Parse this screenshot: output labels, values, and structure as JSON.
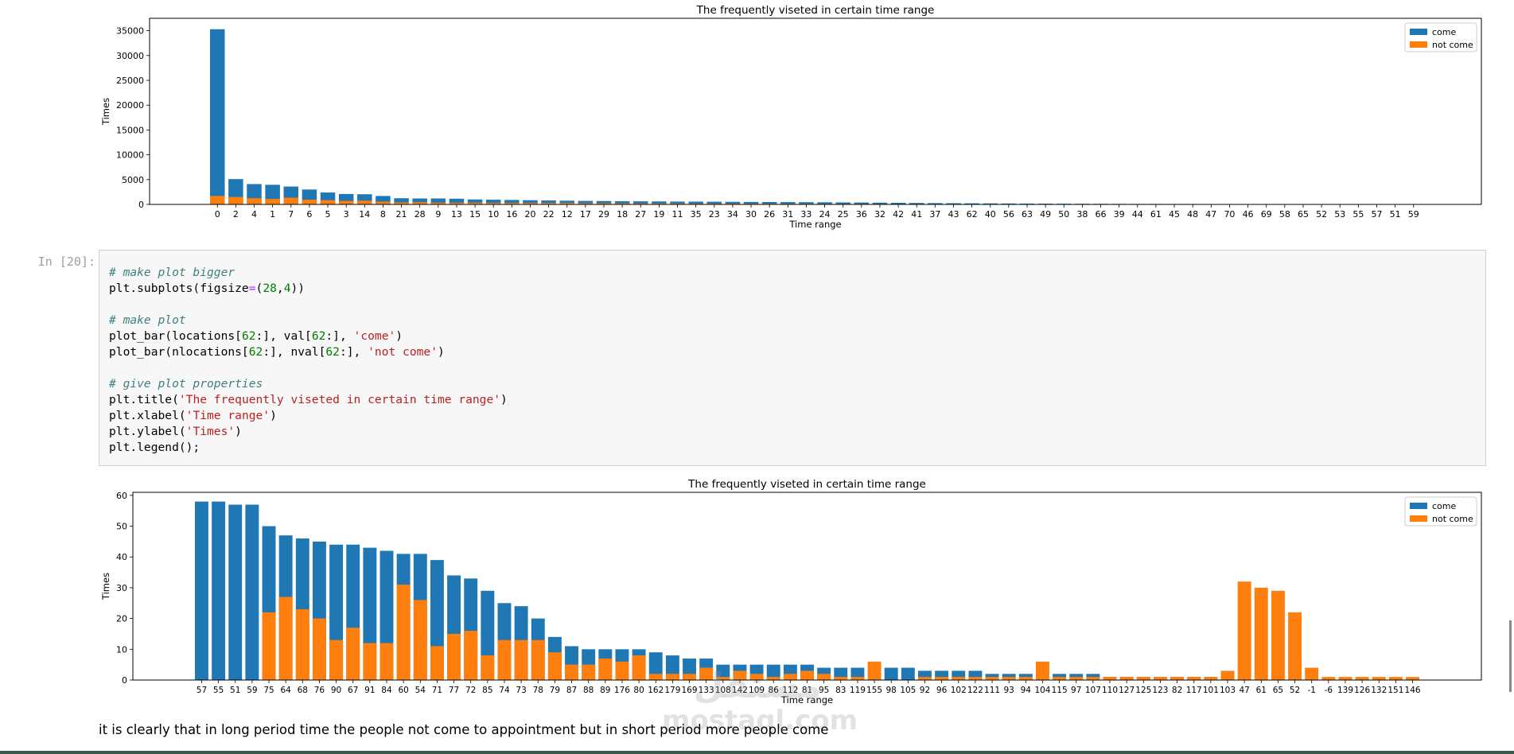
{
  "chart_data": [
    {
      "type": "bar",
      "title": "The frequently viseted in certain time range",
      "xlabel": "Time range",
      "ylabel": "Times",
      "ylim": [
        0,
        37500
      ],
      "yticks": [
        0,
        5000,
        10000,
        15000,
        20000,
        25000,
        30000,
        35000
      ],
      "categories": [
        "0",
        "2",
        "4",
        "1",
        "7",
        "6",
        "5",
        "3",
        "14",
        "8",
        "21",
        "28",
        "9",
        "13",
        "15",
        "10",
        "16",
        "20",
        "22",
        "12",
        "17",
        "29",
        "18",
        "27",
        "19",
        "11",
        "35",
        "23",
        "34",
        "30",
        "26",
        "31",
        "33",
        "24",
        "25",
        "36",
        "32",
        "42",
        "41",
        "37",
        "43",
        "62",
        "40",
        "56",
        "63",
        "49",
        "50",
        "38",
        "66",
        "39",
        "44",
        "61",
        "45",
        "48",
        "47",
        "70",
        "46",
        "69",
        "58",
        "65",
        "52",
        "53",
        "55",
        "57",
        "51",
        "59"
      ],
      "series": [
        {
          "name": "come",
          "color": "#1f77b4",
          "values": [
            35300,
            5100,
            4100,
            3950,
            3600,
            3000,
            2400,
            2100,
            2050,
            1700,
            1250,
            1200,
            1200,
            1150,
            1000,
            950,
            900,
            850,
            800,
            750,
            700,
            680,
            650,
            620,
            600,
            570,
            560,
            540,
            520,
            500,
            480,
            470,
            450,
            430,
            400,
            380,
            350,
            320,
            290,
            260,
            240,
            220,
            200,
            180,
            160,
            150,
            140,
            130,
            120,
            110,
            100,
            95,
            90,
            85,
            80,
            75,
            70,
            65,
            60,
            58,
            55,
            50,
            45,
            40,
            35,
            30
          ]
        },
        {
          "name": "not come",
          "color": "#ff7f0e",
          "values": [
            1700,
            1500,
            1250,
            1100,
            1350,
            950,
            850,
            700,
            750,
            550,
            400,
            450,
            350,
            350,
            350,
            300,
            300,
            300,
            300,
            300,
            250,
            250,
            220,
            200,
            200,
            200,
            170,
            170,
            160,
            150,
            150,
            140,
            130,
            120,
            110,
            100,
            90,
            80,
            70,
            60,
            50,
            50,
            40,
            40,
            35,
            30,
            25,
            25,
            20,
            20,
            15,
            15,
            12,
            10,
            10,
            8,
            6,
            5,
            5,
            4,
            3,
            2,
            2,
            1,
            1,
            1
          ]
        }
      ],
      "legend_position": "top-right",
      "grid": false
    },
    {
      "type": "bar",
      "title": "The frequently viseted in certain time range",
      "xlabel": "Time range",
      "ylabel": "Times",
      "ylim": [
        0,
        61
      ],
      "yticks": [
        0,
        10,
        20,
        30,
        40,
        50,
        60
      ],
      "categories": [
        "57",
        "55",
        "51",
        "59",
        "75",
        "64",
        "68",
        "76",
        "90",
        "67",
        "91",
        "84",
        "60",
        "54",
        "71",
        "77",
        "72",
        "85",
        "74",
        "73",
        "78",
        "79",
        "87",
        "88",
        "89",
        "176",
        "80",
        "162",
        "179",
        "169",
        "133",
        "108",
        "142",
        "109",
        "86",
        "112",
        "81",
        "95",
        "83",
        "119",
        "155",
        "98",
        "105",
        "92",
        "96",
        "102",
        "122",
        "111",
        "93",
        "94",
        "104",
        "115",
        "97",
        "107",
        "110",
        "127",
        "125",
        "123",
        "82",
        "117",
        "101",
        "103",
        "47",
        "61",
        "65",
        "52",
        "-1",
        "-6",
        "139",
        "126",
        "132",
        "151",
        "146"
      ],
      "series": [
        {
          "name": "come",
          "color": "#1f77b4",
          "values": [
            58,
            58,
            57,
            57,
            50,
            47,
            46,
            45,
            44,
            44,
            43,
            42,
            41,
            41,
            39,
            34,
            33,
            29,
            25,
            24,
            20,
            14,
            11,
            10,
            10,
            10,
            10,
            9,
            8,
            7,
            7,
            5,
            5,
            5,
            5,
            5,
            5,
            4,
            4,
            4,
            0,
            4,
            4,
            3,
            3,
            3,
            3,
            2,
            2,
            2,
            0,
            2,
            2,
            2,
            1,
            1,
            1,
            1,
            1,
            1,
            1,
            0,
            0,
            0,
            0,
            0,
            0,
            0,
            0,
            0,
            0,
            0,
            0
          ]
        },
        {
          "name": "not come",
          "color": "#ff7f0e",
          "values": [
            0,
            0,
            0,
            0,
            22,
            27,
            23,
            20,
            13,
            17,
            12,
            12,
            31,
            26,
            11,
            15,
            16,
            8,
            13,
            13,
            13,
            9,
            5,
            5,
            7,
            6,
            8,
            2,
            2,
            2,
            4,
            1,
            3,
            2,
            1,
            2,
            3,
            2,
            1,
            1,
            6,
            0,
            0,
            1,
            1,
            1,
            1,
            1,
            1,
            1,
            6,
            1,
            1,
            1,
            1,
            1,
            1,
            1,
            1,
            1,
            1,
            3,
            32,
            30,
            29,
            22,
            4,
            1,
            1,
            1,
            1,
            1,
            1
          ]
        }
      ],
      "legend_position": "top-right",
      "grid": false
    }
  ],
  "code_cell": {
    "prompt": "In [20]:",
    "lines": [
      "# make plot bigger",
      "plt.subplots(figsize=(28,4))",
      "",
      "# make plot",
      "plot_bar(locations[62:], val[62:], 'come')",
      "plot_bar(nlocations[62:], nval[62:], 'not come')",
      "",
      "# give plot properties",
      "plt.title('The frequently viseted in certain time range')",
      "plt.xlabel('Time range')",
      "plt.ylabel('Times')",
      "plt.legend();"
    ]
  },
  "markdown_text": "it is clearly that in long period time the people not come to appointment but in short period more people come",
  "watermark": {
    "logo": "مستقل",
    "url": "mostaql.com"
  }
}
